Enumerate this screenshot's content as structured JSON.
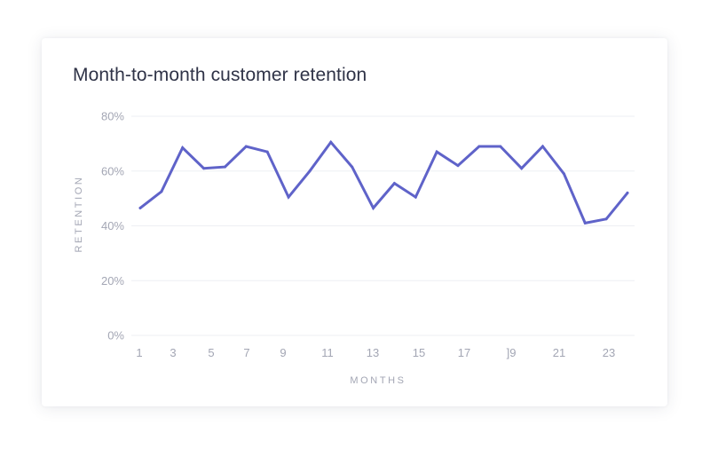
{
  "chart_data": {
    "type": "line",
    "title": "Month-to-month customer retention",
    "xlabel": "MONTHS",
    "ylabel": "RETENTION",
    "x": [
      1,
      2,
      3,
      4,
      5,
      6,
      7,
      8,
      9,
      10,
      11,
      12,
      13,
      14,
      15,
      16,
      17,
      18,
      19,
      20,
      21,
      22,
      23,
      24
    ],
    "series": [
      {
        "name": "Retention",
        "color": "#5f63c9",
        "values": [
          46.5,
          52.5,
          68.5,
          61,
          61.5,
          69,
          67,
          50.5,
          60,
          70.5,
          61.5,
          46.5,
          55.5,
          50.5,
          67,
          62,
          69,
          69,
          61,
          69,
          59,
          41,
          42.5,
          52
        ]
      }
    ],
    "ylim": [
      0,
      80
    ],
    "xlim": [
      1,
      24
    ],
    "yticks": [
      {
        "value": 80,
        "label": "80%"
      },
      {
        "value": 60,
        "label": "60%"
      },
      {
        "value": 40,
        "label": "40%"
      },
      {
        "value": 20,
        "label": "20%"
      },
      {
        "value": 0,
        "label": "0%"
      }
    ],
    "xtick_labels": [
      "1",
      "3",
      "5",
      "7",
      "9",
      "11",
      "13",
      "15",
      "17",
      "]9",
      "21",
      "23"
    ],
    "grid": true,
    "legend": "none"
  }
}
